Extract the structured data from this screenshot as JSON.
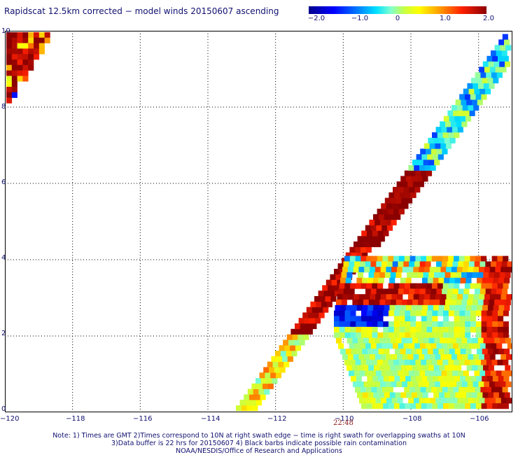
{
  "title": "Rapidscat 12.5km corrected − model winds 20150607 ascending",
  "colorbar": {
    "ticks": [
      "−2.0",
      "−1.0",
      "0",
      "1.0",
      "2.0"
    ],
    "range": [
      -2.0,
      2.0
    ],
    "colors": [
      "#00008b",
      "#0000ff",
      "#0080ff",
      "#00e0ff",
      "#7fffd0",
      "#c8ff40",
      "#ffff00",
      "#ff9900",
      "#ff2000",
      "#8b0000"
    ]
  },
  "axes": {
    "x_ticks": [
      "−120",
      "−118",
      "−116",
      "−114",
      "−112",
      "−110",
      "−108",
      "−106"
    ],
    "y_ticks": [
      "10",
      "8",
      "6",
      "4",
      "2",
      "0"
    ],
    "x_range": [
      -120,
      -105
    ],
    "y_range": [
      0,
      10
    ],
    "grid": true
  },
  "swath_time": "22:48",
  "notes": [
    "Note: 1) Times are GMT 2)Times correspond to 10N at right swath edge − time is right swath for overlapping swaths at 10N",
    "3)Data buffer is 22 hrs for 20150607 4) Black barbs indicate possible rain contamination",
    "NOAA/NESDIS/Office of Research and Applications"
  ]
}
